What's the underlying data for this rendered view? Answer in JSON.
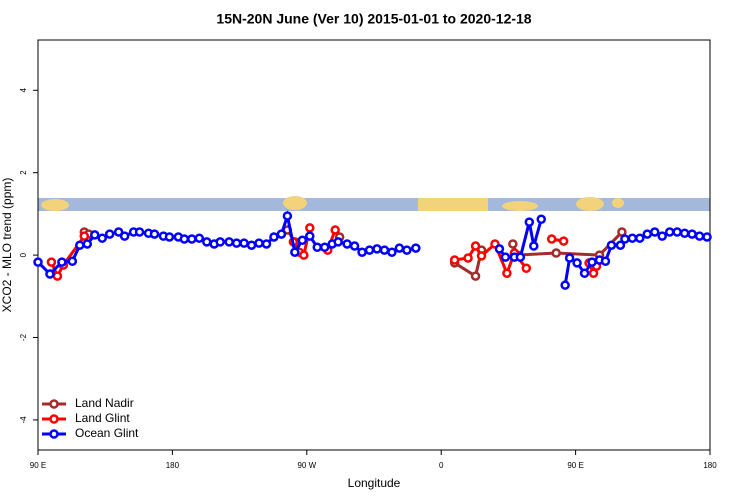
{
  "chart_data": {
    "type": "line",
    "title": "15N-20N June (Ver 10)   2015-01-01 to 2020-12-18",
    "x_label": "Longitude",
    "y_label": "XCO2 - MLO trend (ppm)",
    "xlim": [
      90,
      540
    ],
    "ylim": [
      -4.73,
      5.22
    ],
    "xticks": [
      {
        "value": 90,
        "label": "90 E"
      },
      {
        "value": 180,
        "label": "180"
      },
      {
        "value": 270,
        "label": "90 W"
      },
      {
        "value": 360,
        "label": "0"
      },
      {
        "value": 450,
        "label": "90 E"
      },
      {
        "value": 540,
        "label": "180"
      }
    ],
    "yticks": [
      -4,
      -2,
      0,
      2,
      4
    ],
    "legend": "bottom-left",
    "series": [
      {
        "name": "Land Nadir",
        "color": "#a52a2a",
        "x": [
          121,
          124,
          200,
          257,
          262,
          275,
          292,
          330,
          369,
          383,
          387,
          395,
          408,
          411,
          437,
          466,
          481
        ],
        "values": [
          0.56,
          0.51,
          null,
          0.61,
          0.32,
          null,
          0.44,
          null,
          -0.19,
          -0.51,
          0.12,
          null,
          0.27,
          0.0,
          0.05,
          0.0,
          0.56
        ]
      },
      {
        "name": "Land Glint",
        "color": "#ff0000",
        "x": [
          99,
          103,
          107,
          121,
          200,
          261,
          265,
          268,
          272,
          278,
          284,
          289,
          330,
          369,
          378,
          383,
          387,
          396,
          404,
          409,
          417,
          425,
          434,
          442,
          450,
          459,
          462,
          464
        ],
        "values": [
          -0.17,
          -0.51,
          -0.24,
          0.46,
          null,
          0.32,
          0.07,
          0.0,
          0.66,
          null,
          0.12,
          0.61,
          null,
          -0.12,
          -0.07,
          0.22,
          -0.02,
          0.27,
          -0.44,
          0.05,
          -0.32,
          null,
          0.39,
          0.34,
          null,
          -0.19,
          -0.44,
          -0.27
        ]
      },
      {
        "name": "Ocean Glint",
        "color": "#0000ff",
        "x": [
          90,
          98,
          106,
          113,
          118,
          123,
          128,
          133,
          138,
          144,
          148,
          154,
          158,
          164,
          168,
          174,
          178,
          184,
          188,
          193,
          198,
          203,
          208,
          212,
          218,
          223,
          228,
          233,
          238,
          243,
          248,
          253,
          257,
          262,
          267,
          272,
          277,
          282,
          287,
          291,
          297,
          302,
          307,
          312,
          317,
          322,
          327,
          332,
          337,
          343,
          370,
          399,
          403,
          409,
          413,
          419,
          422,
          427,
          435,
          443,
          446,
          451,
          456,
          461,
          466,
          470,
          474,
          480,
          483,
          488,
          493,
          498,
          503,
          508,
          513,
          518,
          523,
          528,
          533,
          538
        ],
        "values": [
          -0.17,
          -0.46,
          -0.17,
          -0.15,
          0.24,
          0.27,
          0.49,
          0.41,
          0.51,
          0.56,
          0.46,
          0.56,
          0.56,
          0.53,
          0.51,
          0.46,
          0.44,
          0.44,
          0.39,
          0.39,
          0.41,
          0.32,
          0.27,
          0.32,
          0.32,
          0.29,
          0.29,
          0.24,
          0.29,
          0.27,
          0.44,
          0.51,
          0.95,
          0.07,
          0.36,
          0.46,
          0.19,
          0.19,
          0.27,
          0.32,
          0.27,
          0.22,
          0.07,
          0.12,
          0.15,
          0.12,
          0.07,
          0.17,
          0.12,
          0.17,
          null,
          0.15,
          -0.05,
          -0.05,
          -0.05,
          0.8,
          0.22,
          0.87,
          null,
          -0.73,
          -0.07,
          -0.19,
          -0.44,
          -0.17,
          -0.12,
          -0.15,
          0.24,
          0.24,
          0.39,
          0.41,
          0.41,
          0.51,
          0.56,
          0.46,
          0.56,
          0.56,
          0.53,
          0.51,
          0.46,
          0.44
        ]
      }
    ]
  }
}
